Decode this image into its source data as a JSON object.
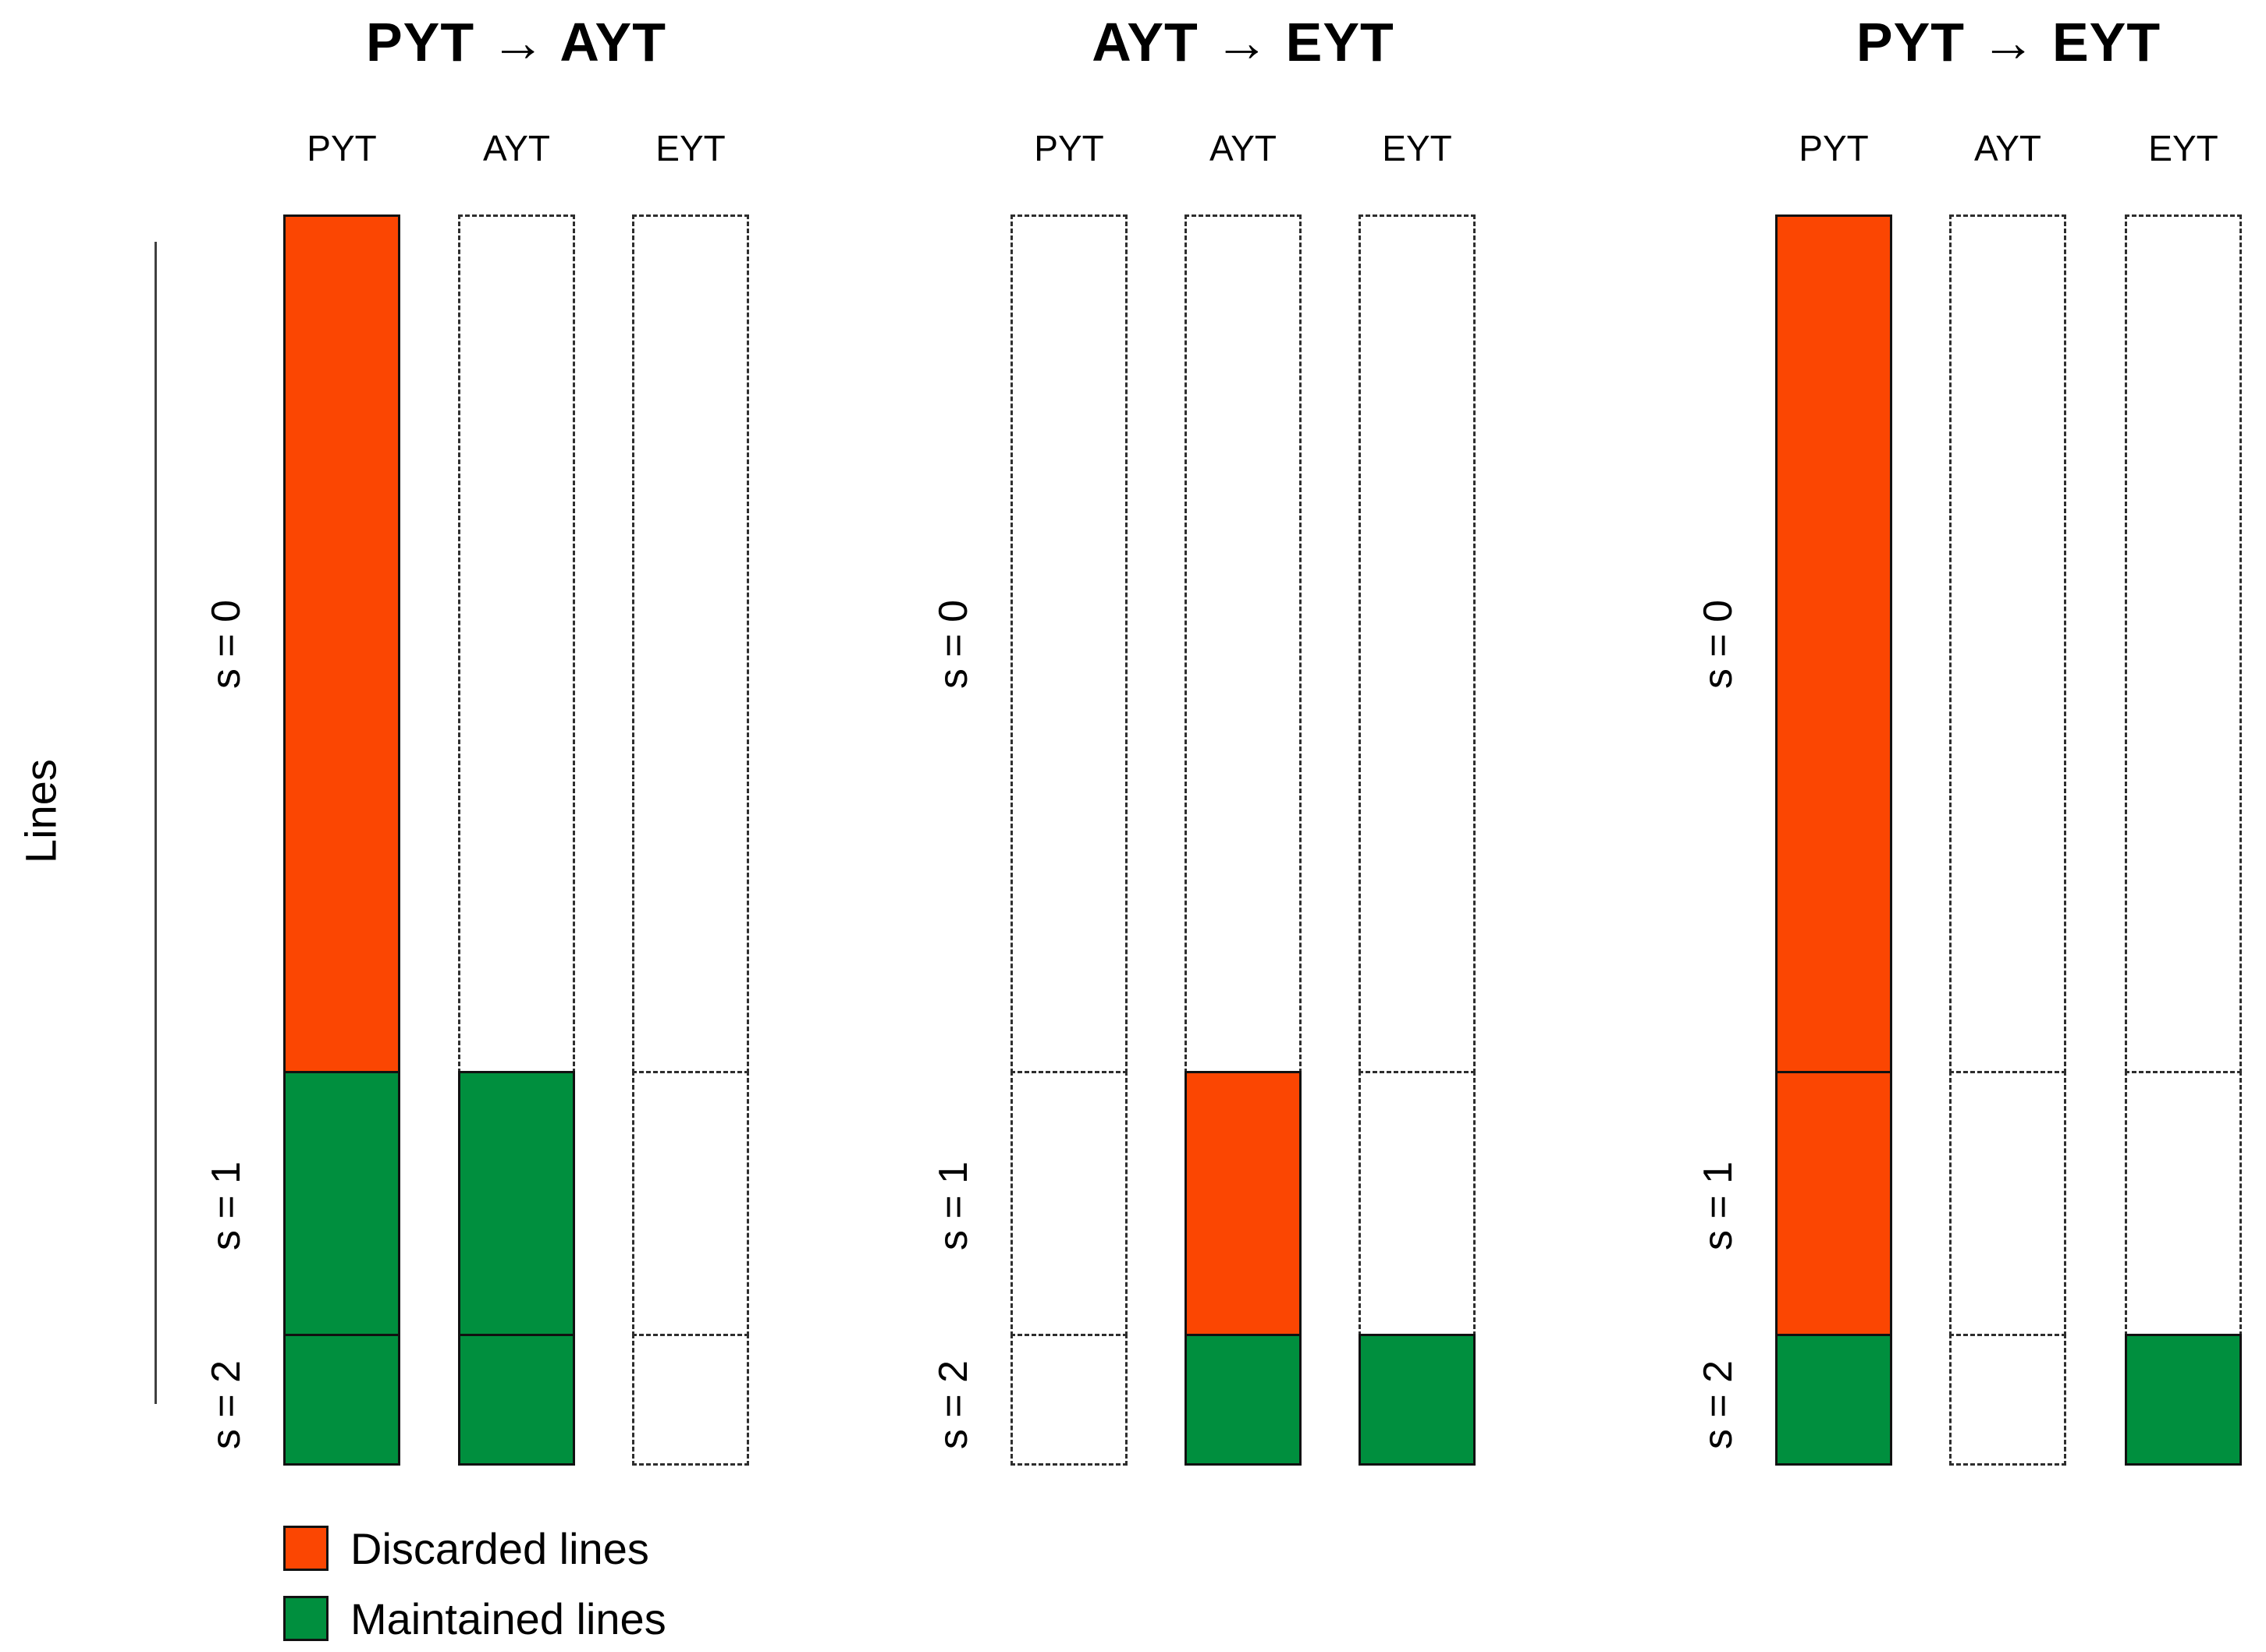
{
  "figure": {
    "ylabel": "Lines",
    "stage_labels": [
      "s = 0",
      "s = 1",
      "s = 2"
    ],
    "column_headers": [
      "PYT",
      "AYT",
      "EYT"
    ],
    "colors": {
      "discarded": "#FB4602",
      "maintained": "#008F3E",
      "bar_border": "#111111",
      "dashed_border": "#2e2e2e",
      "axis": "#404040",
      "text": "#000000",
      "background": "#ffffff"
    },
    "legend": [
      {
        "label": "Discarded lines",
        "status": "discarded",
        "color": "#FB4602"
      },
      {
        "label": "Maintained lines",
        "status": "maintained",
        "color": "#008F3E"
      }
    ]
  },
  "chart_data": [
    {
      "type": "bar",
      "title": "PYT → AYT",
      "categories": [
        "PYT",
        "AYT",
        "EYT"
      ],
      "stages": [
        "s = 0",
        "s = 1",
        "s = 2"
      ],
      "stage_fractions": [
        0.684,
        0.211,
        0.105
      ],
      "series": [
        {
          "name": "PYT",
          "stage_status": [
            "discarded",
            "maintained",
            "maintained"
          ]
        },
        {
          "name": "AYT",
          "stage_status": [
            "none",
            "maintained",
            "maintained"
          ]
        },
        {
          "name": "EYT",
          "stage_status": [
            "none",
            "none",
            "none"
          ]
        }
      ]
    },
    {
      "type": "bar",
      "title": "AYT → EYT",
      "categories": [
        "PYT",
        "AYT",
        "EYT"
      ],
      "stages": [
        "s = 0",
        "s = 1",
        "s = 2"
      ],
      "stage_fractions": [
        0.684,
        0.211,
        0.105
      ],
      "series": [
        {
          "name": "PYT",
          "stage_status": [
            "none",
            "none",
            "none"
          ]
        },
        {
          "name": "AYT",
          "stage_status": [
            "none",
            "discarded",
            "maintained"
          ]
        },
        {
          "name": "EYT",
          "stage_status": [
            "none",
            "none",
            "maintained"
          ]
        }
      ]
    },
    {
      "type": "bar",
      "title": "PYT → EYT",
      "categories": [
        "PYT",
        "AYT",
        "EYT"
      ],
      "stages": [
        "s = 0",
        "s = 1",
        "s = 2"
      ],
      "stage_fractions": [
        0.684,
        0.211,
        0.105
      ],
      "series": [
        {
          "name": "PYT",
          "stage_status": [
            "discarded",
            "discarded",
            "maintained"
          ]
        },
        {
          "name": "AYT",
          "stage_status": [
            "none",
            "none",
            "none"
          ]
        },
        {
          "name": "EYT",
          "stage_status": [
            "none",
            "none",
            "maintained"
          ]
        }
      ]
    }
  ]
}
